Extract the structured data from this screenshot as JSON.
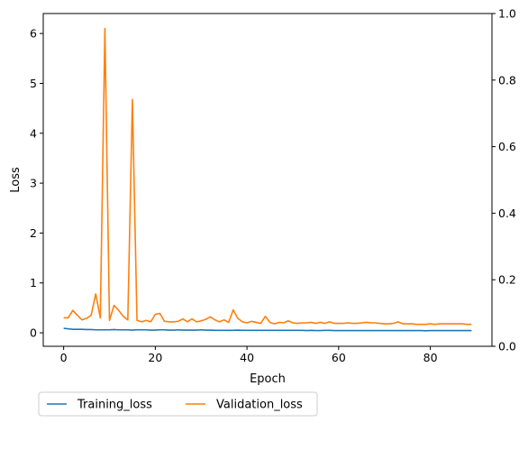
{
  "chart_data": {
    "type": "line",
    "title": "",
    "xlabel": "Epoch",
    "ylabel": "Loss",
    "xlim": [
      -4.45,
      93.45
    ],
    "ylim": [
      -0.27,
      6.4
    ],
    "y2lim": [
      0,
      1
    ],
    "xticks": [
      0,
      20,
      40,
      60,
      80
    ],
    "yticks": [
      0,
      1,
      2,
      3,
      4,
      5,
      6
    ],
    "y2ticks": [
      0.0,
      0.2,
      0.4,
      0.6,
      0.8,
      1.0
    ],
    "y2tick_labels": [
      "0.0",
      "0.2",
      "0.4",
      "0.6",
      "0.8",
      "1.0"
    ],
    "grid": false,
    "legend_placement": "below-left",
    "x": [
      0,
      1,
      2,
      3,
      4,
      5,
      6,
      7,
      8,
      9,
      10,
      11,
      12,
      13,
      14,
      15,
      16,
      17,
      18,
      19,
      20,
      21,
      22,
      23,
      24,
      25,
      26,
      27,
      28,
      29,
      30,
      31,
      32,
      33,
      34,
      35,
      36,
      37,
      38,
      39,
      40,
      41,
      42,
      43,
      44,
      45,
      46,
      47,
      48,
      49,
      50,
      51,
      52,
      53,
      54,
      55,
      56,
      57,
      58,
      59,
      60,
      61,
      62,
      63,
      64,
      65,
      66,
      67,
      68,
      69,
      70,
      71,
      72,
      73,
      74,
      75,
      76,
      77,
      78,
      79,
      80,
      81,
      82,
      83,
      84,
      85,
      86,
      87,
      88,
      89
    ],
    "series": [
      {
        "name": "Training_loss",
        "color": "#1f77b4",
        "values": [
          0.09,
          0.08,
          0.07,
          0.07,
          0.07,
          0.065,
          0.065,
          0.06,
          0.06,
          0.06,
          0.06,
          0.065,
          0.06,
          0.06,
          0.06,
          0.055,
          0.06,
          0.06,
          0.06,
          0.055,
          0.055,
          0.06,
          0.06,
          0.055,
          0.055,
          0.06,
          0.055,
          0.055,
          0.055,
          0.055,
          0.06,
          0.055,
          0.055,
          0.05,
          0.05,
          0.05,
          0.05,
          0.05,
          0.055,
          0.05,
          0.05,
          0.05,
          0.05,
          0.05,
          0.05,
          0.05,
          0.05,
          0.05,
          0.05,
          0.05,
          0.05,
          0.05,
          0.05,
          0.045,
          0.05,
          0.045,
          0.045,
          0.05,
          0.05,
          0.045,
          0.045,
          0.045,
          0.045,
          0.045,
          0.045,
          0.045,
          0.045,
          0.045,
          0.045,
          0.045,
          0.045,
          0.045,
          0.045,
          0.045,
          0.045,
          0.045,
          0.045,
          0.045,
          0.045,
          0.04,
          0.045,
          0.045,
          0.045,
          0.045,
          0.045,
          0.045,
          0.045,
          0.045,
          0.045,
          0.045
        ]
      },
      {
        "name": "Validation_loss",
        "color": "#ff7f0e",
        "values": [
          0.3,
          0.3,
          0.45,
          0.35,
          0.26,
          0.29,
          0.35,
          0.78,
          0.3,
          6.1,
          0.25,
          0.55,
          0.45,
          0.33,
          0.26,
          4.68,
          0.25,
          0.22,
          0.25,
          0.22,
          0.37,
          0.39,
          0.23,
          0.22,
          0.22,
          0.23,
          0.28,
          0.22,
          0.28,
          0.22,
          0.24,
          0.27,
          0.32,
          0.26,
          0.22,
          0.26,
          0.21,
          0.46,
          0.29,
          0.22,
          0.2,
          0.23,
          0.21,
          0.19,
          0.33,
          0.21,
          0.18,
          0.21,
          0.2,
          0.24,
          0.2,
          0.19,
          0.2,
          0.2,
          0.21,
          0.19,
          0.21,
          0.19,
          0.22,
          0.19,
          0.19,
          0.19,
          0.2,
          0.19,
          0.19,
          0.2,
          0.21,
          0.2,
          0.2,
          0.19,
          0.18,
          0.18,
          0.19,
          0.22,
          0.18,
          0.18,
          0.18,
          0.17,
          0.17,
          0.17,
          0.18,
          0.17,
          0.18,
          0.18,
          0.18,
          0.18,
          0.18,
          0.18,
          0.17,
          0.17
        ]
      }
    ]
  }
}
